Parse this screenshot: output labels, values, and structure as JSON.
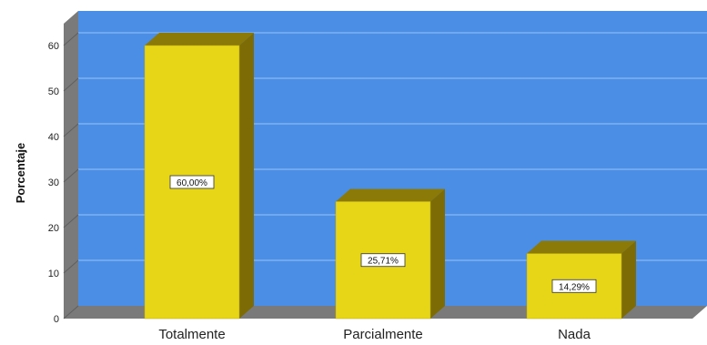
{
  "chart_data": {
    "type": "bar",
    "title": "",
    "xlabel": "",
    "ylabel": "Porcentaje",
    "categories": [
      "Totalmente",
      "Parcialmente",
      "Nada"
    ],
    "values": [
      60.0,
      25.71,
      14.29
    ],
    "data_labels": [
      "60,00%",
      "25,71%",
      "14,29%"
    ],
    "yticks": [
      "0",
      "10",
      "20",
      "30",
      "40",
      "50",
      "60"
    ],
    "ylim": [
      0,
      66
    ],
    "grid": true,
    "style": "3d"
  },
  "colors": {
    "plot_background": "#4a8ee6",
    "bar_front": "#e6d617",
    "bar_top": "#8c7a08",
    "bar_side": "#7d6c05",
    "wall_left": "#7a7a7a",
    "floor": "#7a7a7a",
    "gridline": "#9cc1f2"
  }
}
